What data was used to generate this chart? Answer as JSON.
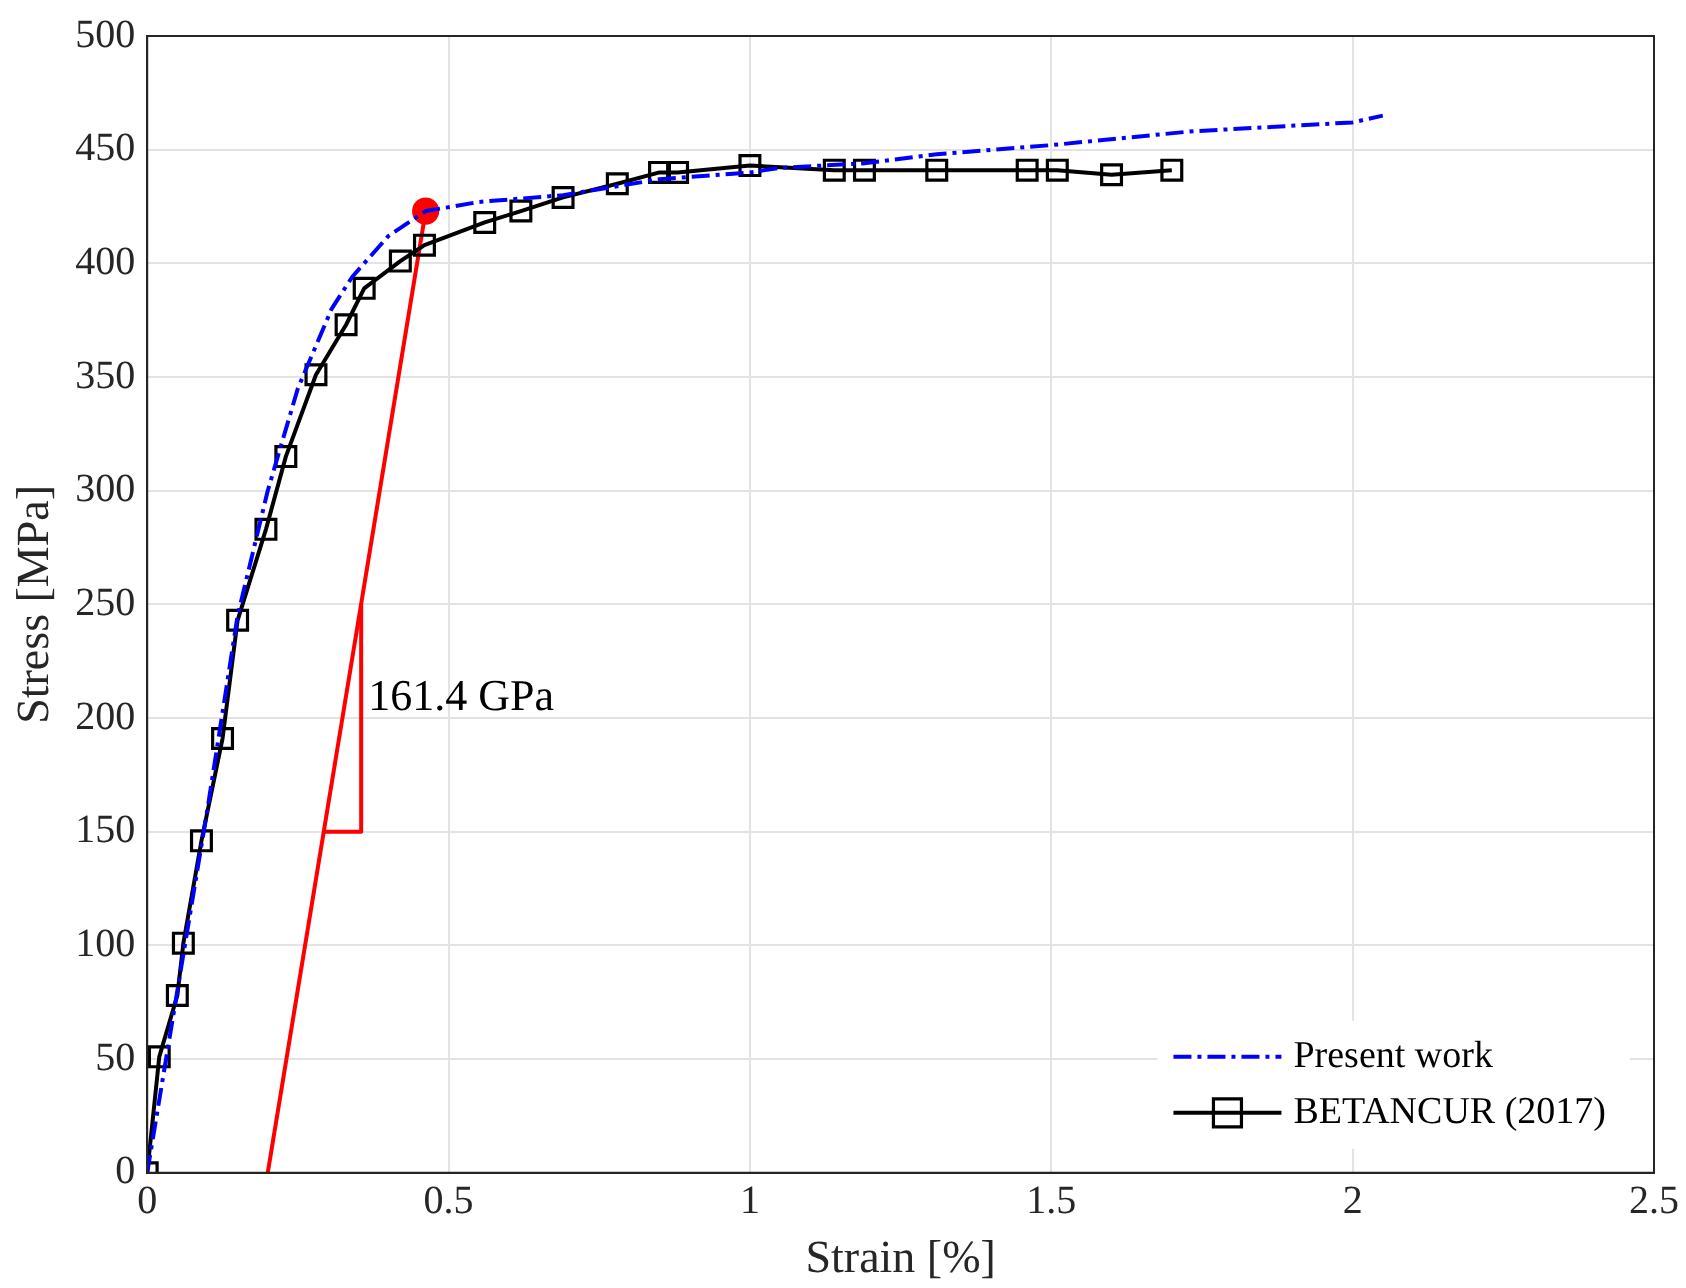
{
  "chart_data": {
    "type": "line",
    "xlabel": "Strain [%]",
    "ylabel": "Stress [MPa]",
    "xlim": [
      0,
      2.5
    ],
    "xticks": [
      0,
      0.5,
      1,
      1.5,
      2,
      2.5
    ],
    "ylim": [
      0,
      500
    ],
    "yticks": [
      0,
      50,
      100,
      150,
      200,
      250,
      300,
      350,
      400,
      450,
      500
    ],
    "grid": true,
    "legend": "bottom right",
    "annotations": [
      {
        "text": "161.4 GPa",
        "x": 0.36,
        "y": 200
      }
    ],
    "series": [
      {
        "name": "Present work",
        "color": "#0000ff",
        "line_style": "dashed",
        "marker": "none",
        "x": [
          0,
          0.05,
          0.1,
          0.15,
          0.2,
          0.25,
          0.306,
          0.34,
          0.4,
          0.462,
          0.55,
          0.69,
          0.85,
          1.0,
          1.05,
          1.19,
          1.31,
          1.5,
          1.73,
          2.0,
          2.05
        ],
        "values": [
          0,
          80,
          160,
          245,
          300,
          345,
          380,
          394,
          412,
          423,
          427,
          430,
          437,
          440,
          442,
          444,
          448,
          452,
          458,
          462,
          465
        ]
      },
      {
        "name": "BETANCUR (2017)",
        "color": "#000000",
        "line_style": "solid",
        "marker": "square",
        "x": [
          0,
          0.02,
          0.05,
          0.06,
          0.09,
          0.125,
          0.15,
          0.197,
          0.23,
          0.28,
          0.33,
          0.36,
          0.42,
          0.46,
          0.56,
          0.62,
          0.69,
          0.78,
          0.85,
          0.88,
          1.0,
          1.14,
          1.19,
          1.31,
          1.46,
          1.51,
          1.6,
          1.7
        ],
        "values": [
          0,
          51,
          78,
          101,
          146,
          191,
          243,
          283,
          315,
          351,
          373,
          389,
          401,
          408,
          418,
          423,
          429,
          435,
          440,
          440,
          443,
          441,
          441,
          441,
          441,
          441,
          439,
          441
        ]
      },
      {
        "color": "#ff0000",
        "line_style": "solid",
        "marker": "none",
        "x": [
          0.2,
          0.462
        ],
        "values": [
          0,
          423
        ]
      },
      {
        "color": "#ff0000",
        "line_style": "solid",
        "marker": "none",
        "x": [
          0.293,
          0.355,
          0.355
        ],
        "values": [
          150,
          150,
          250
        ]
      },
      {
        "type": "scatter",
        "color": "#ff0000",
        "marker": "circle",
        "x": [
          0.462
        ],
        "values": [
          423
        ]
      }
    ]
  }
}
